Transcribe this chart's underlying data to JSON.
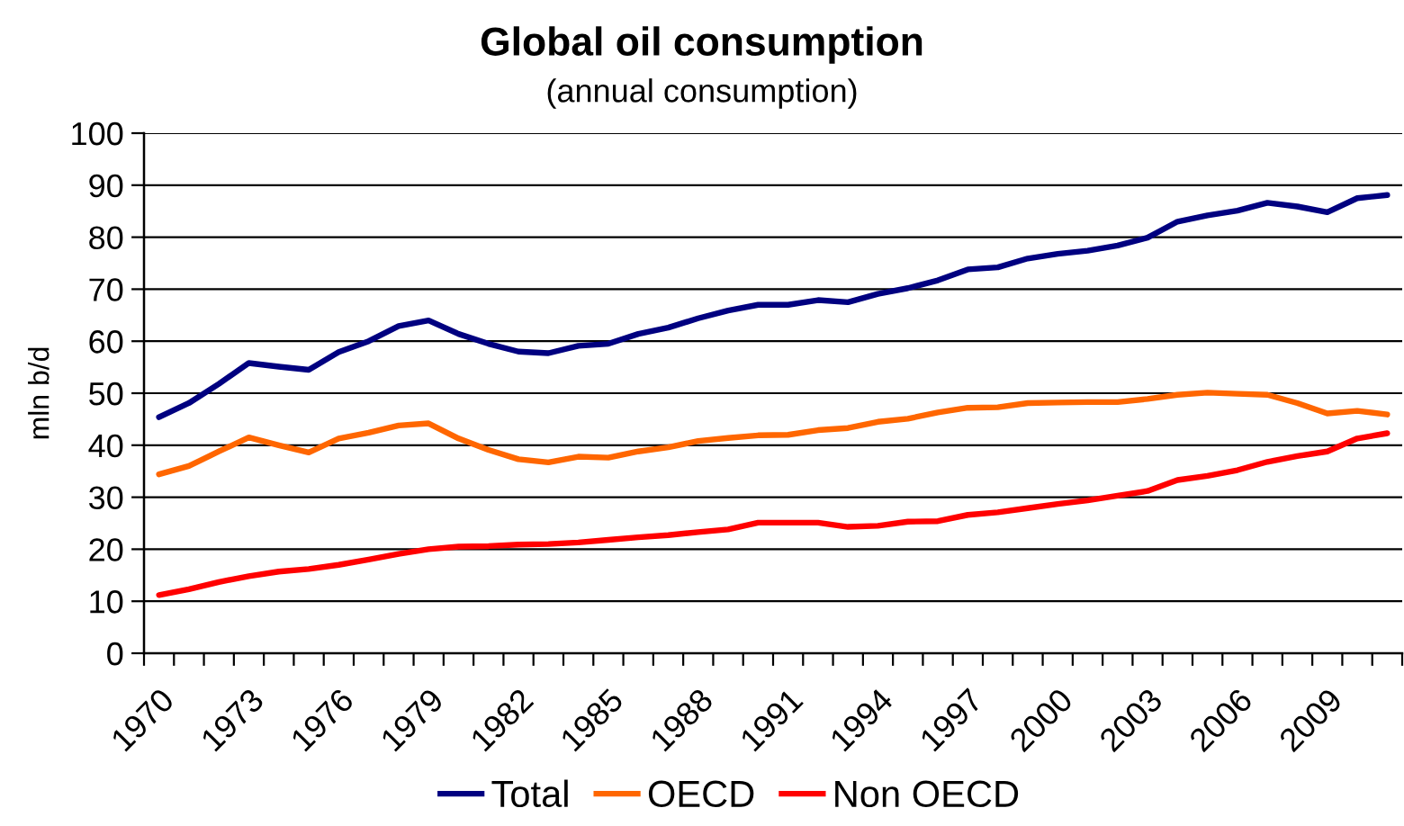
{
  "chart_data": {
    "type": "line",
    "title": "Global oil consumption",
    "subtitle": "(annual consumption)",
    "ylabel": "mln b/d",
    "categories": [
      "1970",
      null,
      null,
      "1973",
      null,
      null,
      "1976",
      null,
      null,
      "1979",
      null,
      null,
      "1982",
      null,
      null,
      "1985",
      null,
      null,
      "1988",
      null,
      null,
      "1991",
      null,
      null,
      "1994",
      null,
      null,
      "1997",
      null,
      null,
      "2000",
      null,
      null,
      "2003",
      null,
      null,
      "2006",
      null,
      null,
      "2009",
      null,
      null
    ],
    "series": [
      {
        "name": "Total",
        "color": "#000080",
        "values": [
          45.4,
          48.1,
          51.8,
          55.8,
          55.1,
          54.5,
          57.9,
          60.0,
          62.9,
          64.0,
          61.4,
          59.5,
          58.0,
          57.7,
          59.1,
          59.5,
          61.4,
          62.6,
          64.4,
          65.9,
          67.0,
          67.0,
          67.9,
          67.5,
          69.1,
          70.2,
          71.7,
          73.8,
          74.2,
          75.9,
          76.8,
          77.4,
          78.4,
          79.9,
          83.0,
          84.2,
          85.1,
          86.6,
          85.9,
          84.8,
          87.5,
          88.1
        ]
      },
      {
        "name": "OECD",
        "color": "#ff6600",
        "values": [
          34.4,
          36.0,
          38.8,
          41.5,
          40.0,
          38.6,
          41.3,
          42.4,
          43.8,
          44.2,
          41.3,
          39.1,
          37.3,
          36.7,
          37.8,
          37.6,
          38.8,
          39.6,
          40.8,
          41.4,
          41.9,
          42.0,
          42.9,
          43.3,
          44.5,
          45.1,
          46.3,
          47.2,
          47.3,
          48.1,
          48.2,
          48.3,
          48.3,
          48.9,
          49.7,
          50.1,
          49.9,
          49.7,
          48.1,
          46.1,
          46.6,
          45.9
        ]
      },
      {
        "name": "Non OECD",
        "color": "#ff0000",
        "values": [
          11.2,
          12.3,
          13.7,
          14.8,
          15.7,
          16.2,
          17.0,
          18.0,
          19.1,
          20.0,
          20.5,
          20.6,
          20.9,
          21.0,
          21.3,
          21.8,
          22.3,
          22.7,
          23.3,
          23.8,
          25.1,
          25.1,
          25.1,
          24.3,
          24.5,
          25.3,
          25.4,
          26.6,
          27.1,
          27.9,
          28.7,
          29.4,
          30.3,
          31.2,
          33.3,
          34.1,
          35.2,
          36.8,
          37.9,
          38.8,
          41.3,
          42.3
        ]
      }
    ],
    "ylim": [
      0,
      100
    ],
    "yticks": [
      0,
      10,
      20,
      30,
      40,
      50,
      60,
      70,
      80,
      90,
      100
    ],
    "grid": "y",
    "legend": "bottom",
    "line_style": "solid"
  }
}
